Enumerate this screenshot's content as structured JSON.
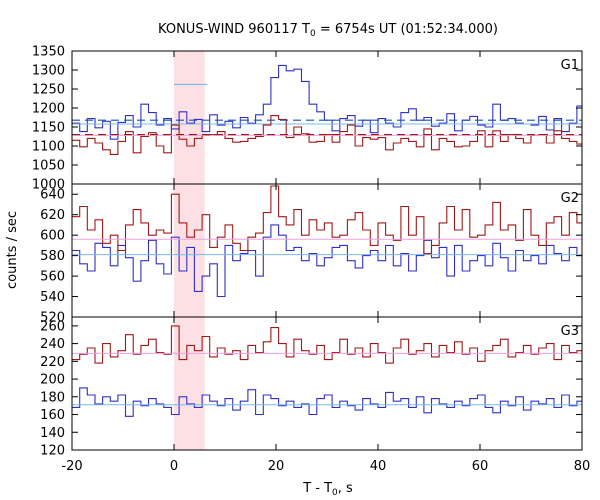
{
  "chart_data": {
    "type": "line",
    "title": "KONUS-WIND 960117 T",
    "title_sub": "0",
    "title_rest": " = 6754s UT (01:52:34.000)",
    "xlabel": "T - T",
    "xlabel_sub": "0",
    "xlabel_rest": ", s",
    "ylabel": "counts / sec",
    "xlim": [
      -20,
      80
    ],
    "xticks": [
      -20,
      0,
      20,
      40,
      60,
      80
    ],
    "x_step": 1.5,
    "highlight_interval": [
      0,
      6
    ],
    "highlight_color": "#fde0e4",
    "colors": {
      "blue": "#3030c8",
      "red": "#a01818",
      "blue_mean": "#7ab8f0",
      "red_mean": "#f0a0e0",
      "g1_blue_dash": "#1a50b4",
      "g1_red_dash": "#a01818"
    },
    "panels": [
      {
        "label": "G1",
        "ylim": [
          1000,
          1350
        ],
        "yticks": [
          1000,
          1050,
          1100,
          1150,
          1200,
          1250,
          1300,
          1350
        ],
        "grid": false,
        "series": [
          {
            "color": "blue",
            "mean": 1158,
            "start": -20,
            "values": [
              1160,
              1138,
              1172,
              1148,
              1165,
              1118,
              1162,
              1180,
              1150,
              1210,
              1188,
              1155,
              1172,
              1145,
              1190,
              1160,
              1170,
              1138,
              1182,
              1155,
              1165,
              1148,
              1175,
              1160,
              1182,
              1210,
              1280,
              1312,
              1298,
              1302,
              1270,
              1210,
              1190,
              1168,
              1140,
              1172,
              1180,
              1152,
              1168,
              1135,
              1172,
              1160,
              1150,
              1188,
              1198,
              1168,
              1175,
              1152,
              1160,
              1185,
              1140,
              1168,
              1178,
              1155,
              1150,
              1210,
              1168,
              1172,
              1160,
              1158,
              1155,
              1178,
              1142,
              1172,
              1138,
              1160,
              1205,
              1168,
              1150,
              1175
            ]
          },
          {
            "color": "red",
            "mean": 1128,
            "start": -20,
            "values": [
              1115,
              1098,
              1120,
              1108,
              1090,
              1078,
              1112,
              1138,
              1082,
              1125,
              1135,
              1100,
              1082,
              1155,
              1118,
              1100,
              1120,
              1128,
              1130,
              1138,
              1120,
              1110,
              1112,
              1120,
              1125,
              1155,
              1180,
              1170,
              1122,
              1150,
              1132,
              1110,
              1112,
              1130,
              1110,
              1138,
              1155,
              1100,
              1122,
              1118,
              1122,
              1090,
              1108,
              1120,
              1112,
              1098,
              1145,
              1090,
              1120,
              1112,
              1098,
              1100,
              1112,
              1140,
              1098,
              1140,
              1112,
              1130,
              1120,
              1108,
              1128,
              1130,
              1108,
              1140,
              1120,
              1112,
              1105,
              1148,
              1138,
              1120
            ]
          }
        ],
        "dashed_lines": [
          {
            "color": "g1_blue_dash",
            "value": 1168
          },
          {
            "color": "g1_red_dash",
            "value": 1130
          }
        ],
        "overlay_mean": {
          "color": "blue_mean",
          "start": 0,
          "end": 6.5,
          "value": 1262
        }
      },
      {
        "label": "G2",
        "ylim": [
          520,
          650
        ],
        "yticks": [
          520,
          540,
          560,
          580,
          600,
          620,
          640
        ],
        "grid": false,
        "series": [
          {
            "color": "blue",
            "mean": 581,
            "start": -20,
            "values": [
              585,
              572,
              565,
              592,
              588,
              570,
              590,
              578,
              555,
              575,
              595,
              572,
              562,
              598,
              565,
              588,
              545,
              560,
              572,
              540,
              590,
              575,
              582,
              585,
              560,
              598,
              610,
              600,
              585,
              588,
              575,
              582,
              570,
              578,
              588,
              590,
              575,
              568,
              580,
              585,
              575,
              590,
              570,
              582,
              565,
              580,
              595,
              578,
              588,
              560,
              590,
              565,
              575,
              580,
              570,
              592,
              578,
              565,
              585,
              575,
              580,
              572,
              590,
              582,
              575,
              588,
              580,
              572,
              590,
              585
            ]
          },
          {
            "color": "red",
            "mean": 596,
            "start": -20,
            "values": [
              618,
              628,
              605,
              615,
              592,
              600,
              585,
              610,
              625,
              612,
              600,
              605,
              602,
              640,
              612,
              598,
              605,
              620,
              588,
              598,
              610,
              592,
              585,
              598,
              602,
              622,
              648,
              618,
              610,
              625,
              600,
              615,
              605,
              612,
              598,
              600,
              615,
              622,
              605,
              590,
              612,
              600,
              595,
              628,
              600,
              618,
              582,
              590,
              612,
              628,
              605,
              625,
              598,
              600,
              610,
              632,
              605,
              610,
              595,
              625,
              600,
              590,
              612,
              618,
              600,
              622,
              612,
              630,
              605,
              590
            ]
          }
        ]
      },
      {
        "label": "G3",
        "ylim": [
          120,
          270
        ],
        "yticks": [
          120,
          140,
          160,
          180,
          200,
          220,
          240,
          260
        ],
        "grid": false,
        "series": [
          {
            "color": "red",
            "mean": 229,
            "start": -20,
            "values": [
              222,
              228,
              235,
              218,
              240,
              225,
              232,
              250,
              228,
              238,
              245,
              230,
              228,
              260,
              222,
              238,
              232,
              248,
              225,
              235,
              228,
              232,
              222,
              238,
              230,
              242,
              258,
              240,
              225,
              245,
              232,
              228,
              238,
              222,
              230,
              245,
              228,
              235,
              225,
              240,
              230,
              218,
              235,
              245,
              228,
              232,
              240,
              225,
              238,
              230,
              242,
              228,
              235,
              220,
              232,
              238,
              245,
              225,
              230,
              238,
              228,
              235,
              240,
              222,
              238,
              230,
              232,
              240,
              228,
              234
            ]
          },
          {
            "color": "blue",
            "mean": 171,
            "start": -20,
            "values": [
              168,
              190,
              182,
              172,
              180,
              175,
              182,
              158,
              175,
              170,
              178,
              172,
              168,
              160,
              180,
              172,
              168,
              182,
              175,
              170,
              178,
              165,
              175,
              188,
              160,
              182,
              178,
              170,
              175,
              168,
              172,
              160,
              178,
              182,
              168,
              175,
              170,
              165,
              178,
              172,
              168,
              185,
              175,
              178,
              168,
              180,
              162,
              178,
              172,
              168,
              175,
              170,
              178,
              182,
              168,
              162,
              175,
              170,
              180,
              165,
              175,
              172,
              178,
              168,
              182,
              170,
              175,
              165,
              178,
              172
            ]
          }
        ]
      }
    ]
  }
}
